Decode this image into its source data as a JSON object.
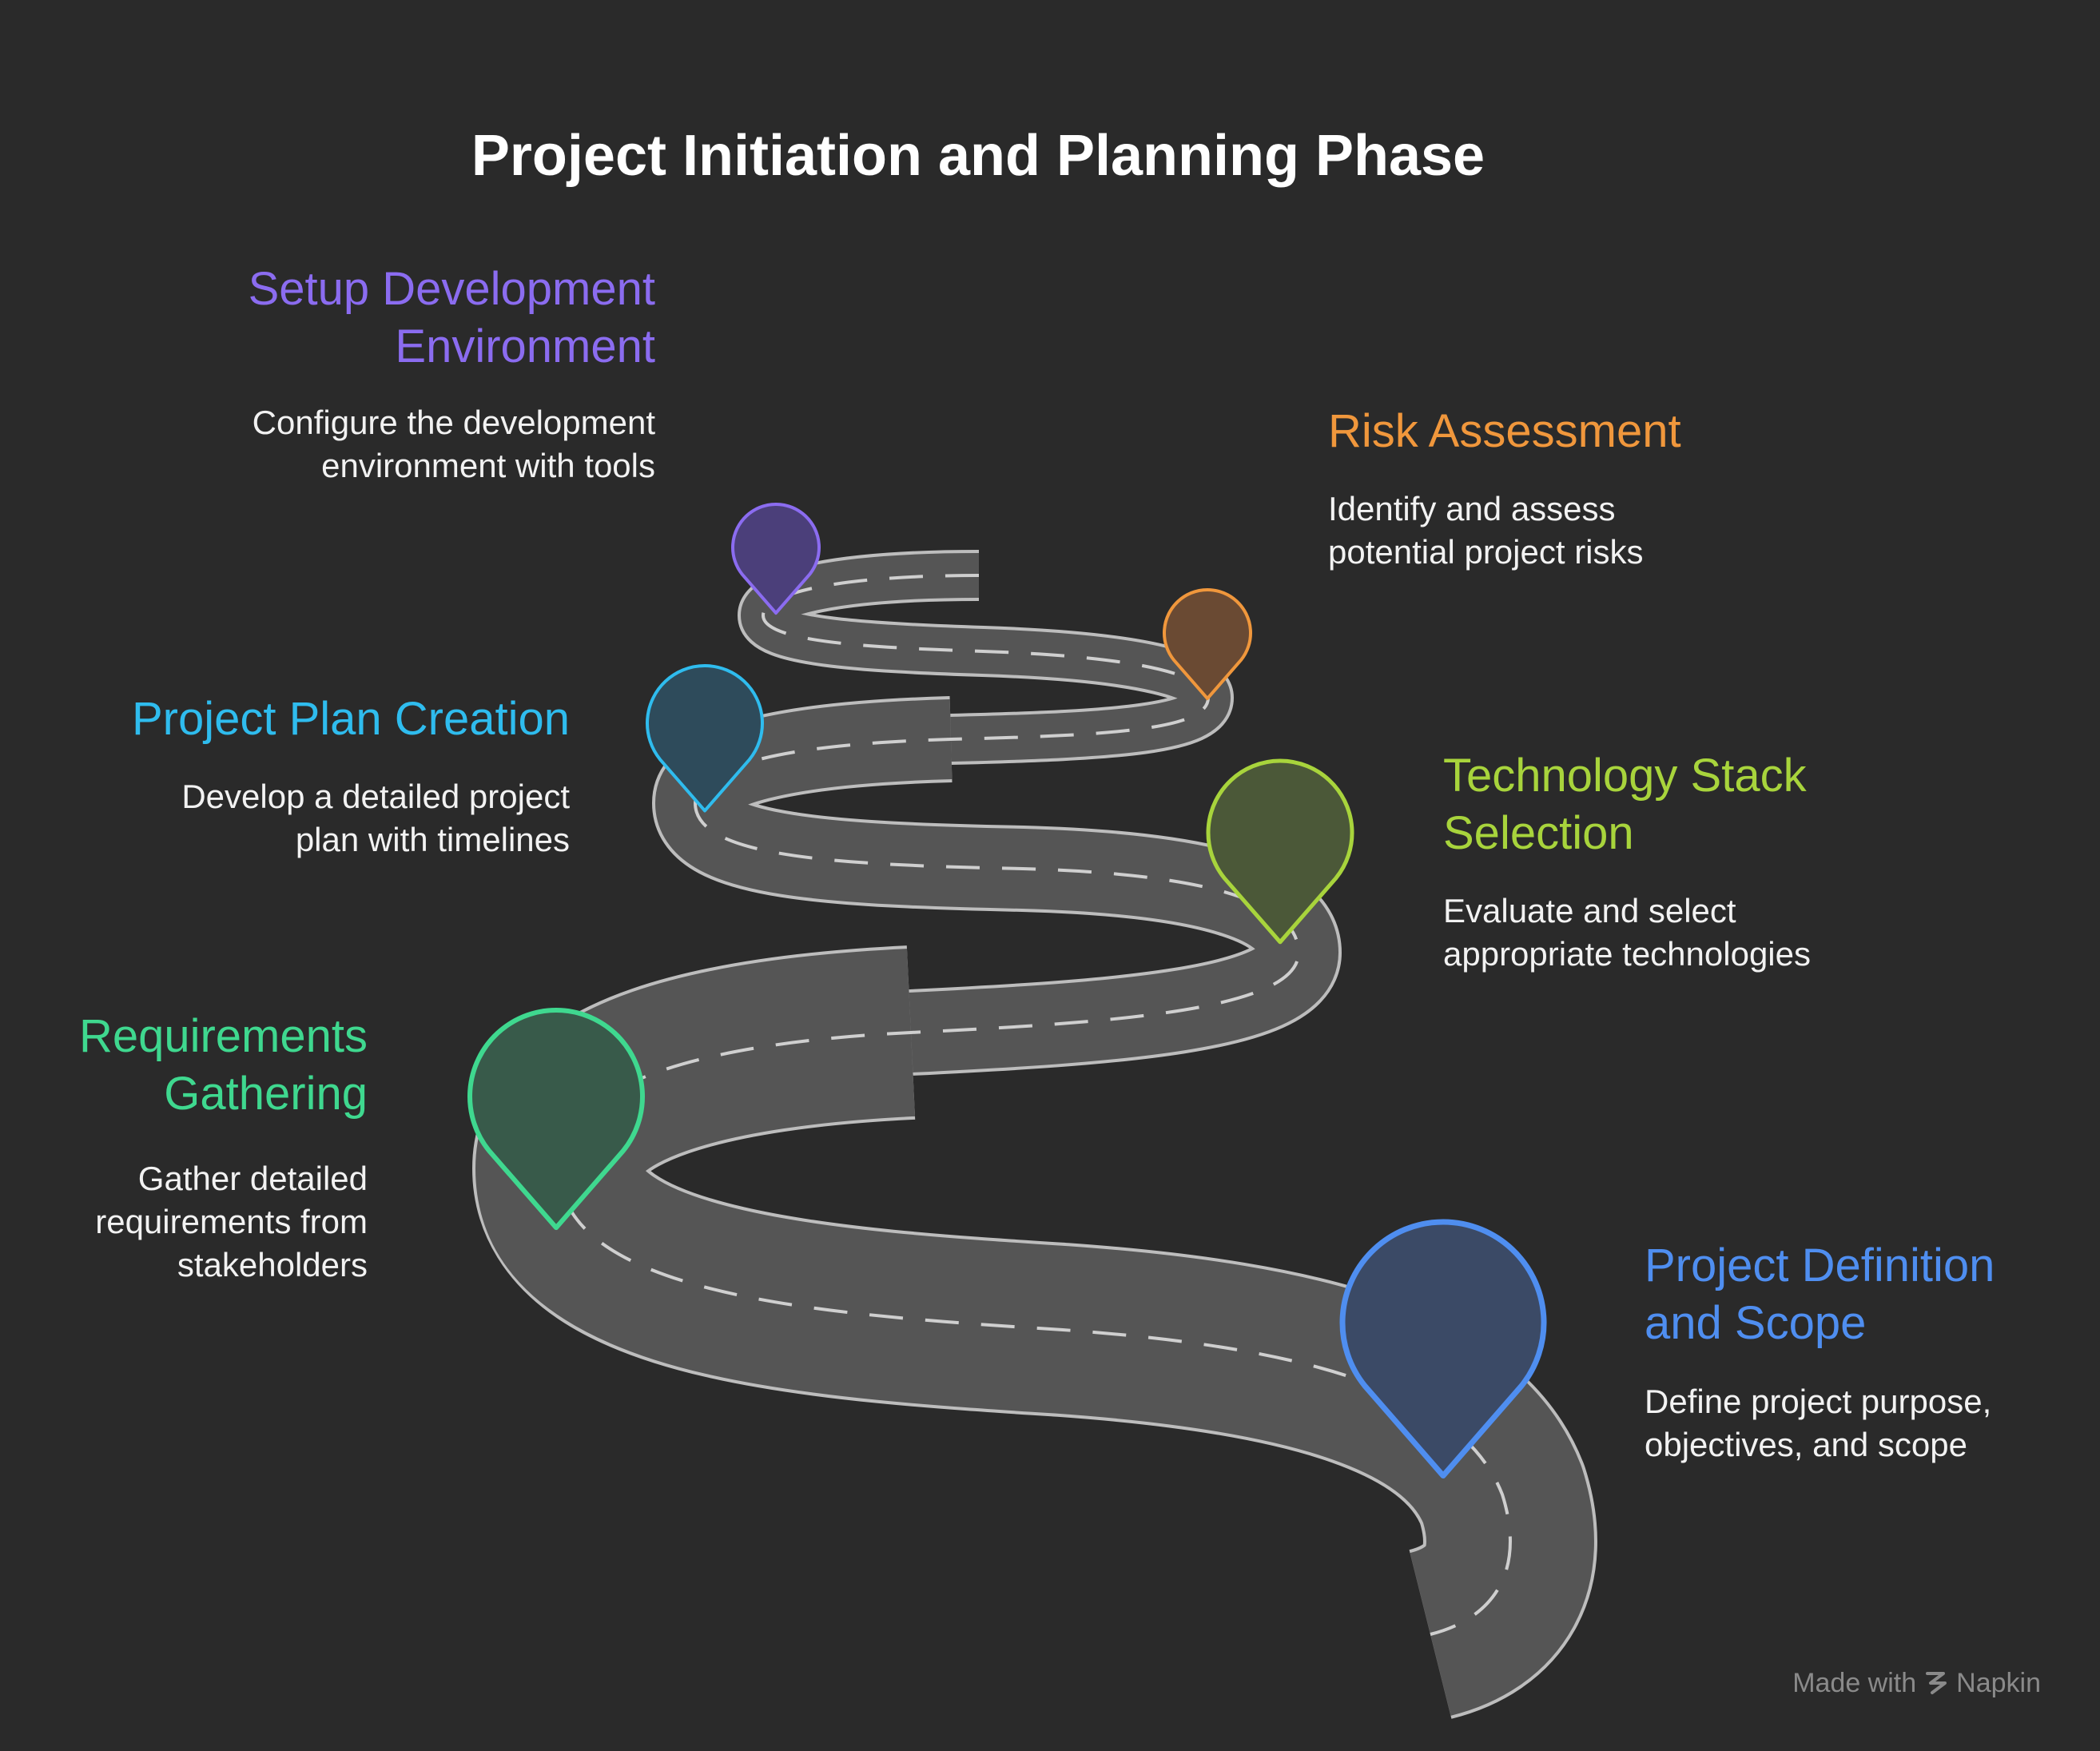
{
  "title": "Project Initiation and Planning Phase",
  "steps": [
    {
      "id": "setup-development-environment",
      "title_line1": "Setup Development",
      "title_line2": "Environment",
      "desc_line1": "Configure the development",
      "desc_line2": "environment with tools",
      "color": "#8b6cf0",
      "fill": "#4b3f7a"
    },
    {
      "id": "risk-assessment",
      "title_line1": "Risk Assessment",
      "desc_line1": "Identify and assess",
      "desc_line2": "potential project risks",
      "color": "#f0973c",
      "fill": "#6a4a33"
    },
    {
      "id": "project-plan-creation",
      "title_line1": "Project Plan Creation",
      "desc_line1": "Develop a detailed project",
      "desc_line2": "plan with timelines",
      "color": "#2fbcee",
      "fill": "#2e4b5b"
    },
    {
      "id": "technology-stack-selection",
      "title_line1": "Technology Stack",
      "title_line2": "Selection",
      "desc_line1": "Evaluate and select",
      "desc_line2": "appropriate technologies",
      "color": "#a8d43c",
      "fill": "#4b5838"
    },
    {
      "id": "requirements-gathering",
      "title_line1": "Requirements",
      "title_line2": "Gathering",
      "desc_line1": "Gather detailed",
      "desc_line2": "requirements from",
      "desc_line3": "stakeholders",
      "color": "#3fd88f",
      "fill": "#385a4a"
    },
    {
      "id": "project-definition-and-scope",
      "title_line1": "Project Definition",
      "title_line2": "and Scope",
      "desc_line1": "Define project purpose,",
      "desc_line2": "objectives, and scope",
      "color": "#4f8ef0",
      "fill": "#3b4a66"
    }
  ],
  "footer": {
    "made_with": "Made with",
    "brand": "Napkin"
  },
  "colors": {
    "background": "#2a2a2a",
    "road": "#555555",
    "road_edge": "#bdbdbd",
    "road_dash": "#cfcfcf"
  }
}
